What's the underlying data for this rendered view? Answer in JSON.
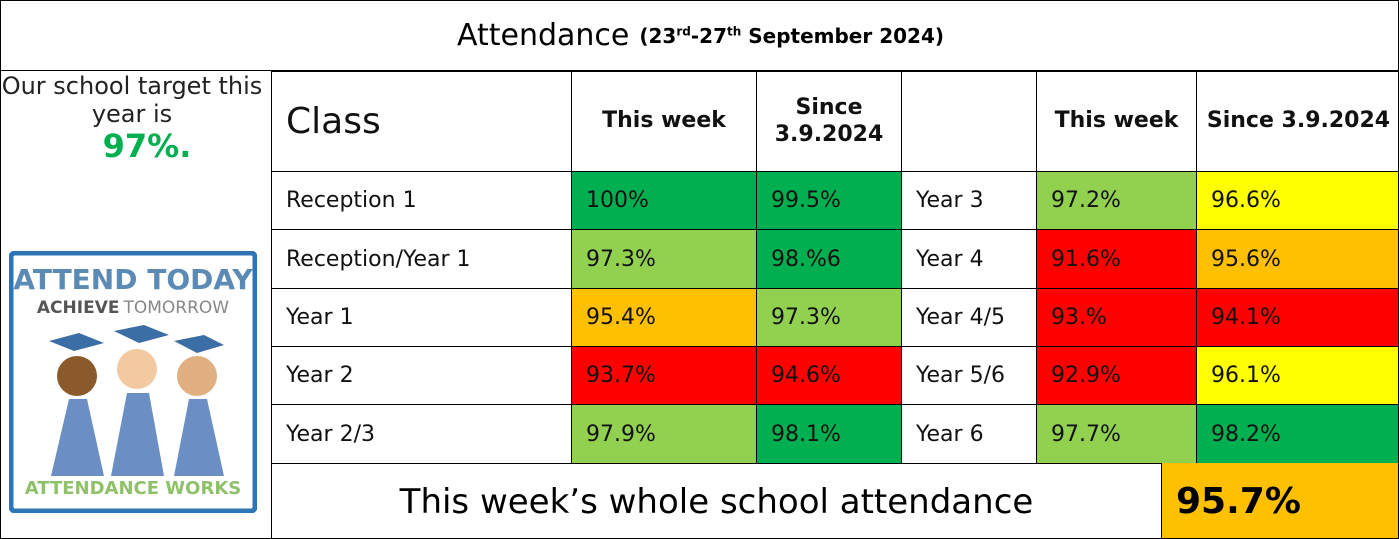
{
  "title": {
    "main": "Attendance",
    "date": [
      "(23",
      "rd",
      "-27",
      "th",
      " September 2024)"
    ]
  },
  "target": {
    "text": "Our school target this year is",
    "value": "97%.",
    "color": "#00b050"
  },
  "logo": {
    "line1": "ATTEND TODAY",
    "line2a": "ACHIEVE",
    "line2b": "TOMORROW",
    "footer": "ATTENDANCE WORKS"
  },
  "table": {
    "header": [
      "Class",
      "This week",
      "Since 3.9.2024",
      "This week",
      "Since 3.9.2024"
    ],
    "rows": [
      [
        "Reception 1",
        {
          "text": "100%",
          "color": "#00b050"
        },
        {
          "text": "99.5%",
          "color": "#00b050"
        },
        "Year 3",
        {
          "text": "97.2%",
          "color": "#92d050"
        },
        {
          "text": "96.6%",
          "color": "#ffff00"
        }
      ],
      [
        "Reception/Year 1",
        {
          "text": "97.3%",
          "color": "#92d050"
        },
        {
          "text": "98.%6",
          "color": "#00b050"
        },
        "Year 4",
        {
          "text": "91.6%",
          "color": "#ff0000"
        },
        {
          "text": "95.6%",
          "color": "#ffc000"
        }
      ],
      [
        "Year 1",
        {
          "text": "95.4%",
          "color": "#ffc000"
        },
        {
          "text": "97.3%",
          "color": "#92d050"
        },
        "Year 4/5",
        {
          "text": "93.%",
          "color": "#ff0000"
        },
        {
          "text": "94.1%",
          "color": "#ff0000"
        }
      ],
      [
        "Year 2",
        {
          "text": "93.7%",
          "color": "#ff0000"
        },
        {
          "text": "94.6%",
          "color": "#ff0000"
        },
        "Year 5/6",
        {
          "text": "92.9%",
          "color": "#ff0000"
        },
        {
          "text": "96.1%",
          "color": "#ffff00"
        }
      ],
      [
        "Year 2/3",
        {
          "text": "97.9%",
          "color": "#92d050"
        },
        {
          "text": "98.1%",
          "color": "#00b050"
        },
        "Year 6",
        {
          "text": "97.7%",
          "color": "#92d050"
        },
        {
          "text": "98.2%",
          "color": "#00b050"
        }
      ]
    ]
  },
  "footer": {
    "text": "This week’s whole school attendance",
    "value": "95.7%",
    "color": "#ffc000"
  }
}
